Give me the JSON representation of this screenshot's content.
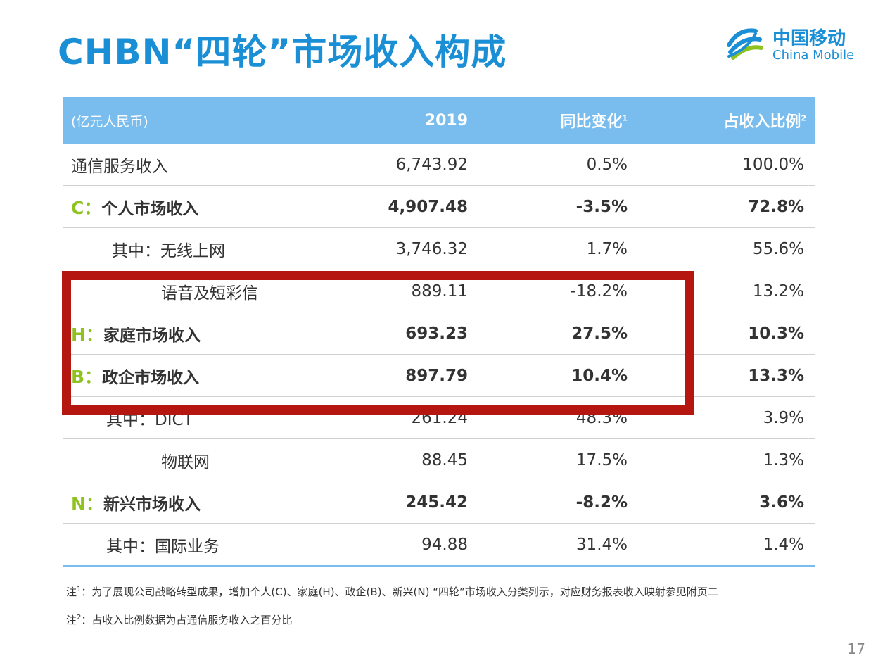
{
  "title": "CHBN“四轮”市场收入构成",
  "logo": {
    "zh": "中国移动",
    "en": "China Mobile"
  },
  "table": {
    "headers": [
      "(亿元人民币)",
      "2019",
      "同比变化",
      "占收入比例"
    ],
    "header_sups": [
      "1",
      "2"
    ],
    "rows": [
      {
        "prefix": "",
        "label": "通信服务收入",
        "v2019": "6,743.92",
        "yoy": "0.5%",
        "share": "100.0%"
      },
      {
        "prefix": "C：",
        "label": "个人市场收入",
        "v2019": "4,907.48",
        "yoy": "-3.5%",
        "share": "72.8%"
      },
      {
        "prefix": "",
        "label": "其中：无线上网",
        "v2019": "3,746.32",
        "yoy": "1.7%",
        "share": "55.6%"
      },
      {
        "prefix": "",
        "label": "语音及短彩信",
        "v2019": "889.11",
        "yoy": "-18.2%",
        "share": "13.2%"
      },
      {
        "prefix": "H：",
        "label": "家庭市场收入",
        "v2019": "693.23",
        "yoy": "27.5%",
        "share": "10.3%"
      },
      {
        "prefix": "B：",
        "label": "政企市场收入",
        "v2019": "897.79",
        "yoy": "10.4%",
        "share": "13.3%"
      },
      {
        "prefix": "",
        "label": "其中：DICT",
        "v2019": "261.24",
        "yoy": "48.3%",
        "share": "3.9%"
      },
      {
        "prefix": "",
        "label": "物联网",
        "v2019": "88.45",
        "yoy": "17.5%",
        "share": "1.3%"
      },
      {
        "prefix": "N：",
        "label": "新兴市场收入",
        "v2019": "245.42",
        "yoy": "-8.2%",
        "share": "3.6%"
      },
      {
        "prefix": "",
        "label": "其中：国际业务",
        "v2019": "94.88",
        "yoy": "31.4%",
        "share": "1.4%"
      }
    ]
  },
  "notes": [
    {
      "prefix": "注",
      "sup": "1",
      "text": "：为了展现公司战略转型成果，增加个人(C)、家庭(H)、政企(B)、新兴(N) “四轮”市场收入分类列示，对应财务报表收入映射参见附页二"
    },
    {
      "prefix": "注",
      "sup": "2",
      "text": "：占收入比例数据为占通信服务收入之百分比"
    }
  ],
  "page_number": "17",
  "colors": {
    "title": "#1a8fd6",
    "header_bg": "#79bdee",
    "letter_green": "#8dc21f",
    "highlight_box": "#b5160f"
  }
}
